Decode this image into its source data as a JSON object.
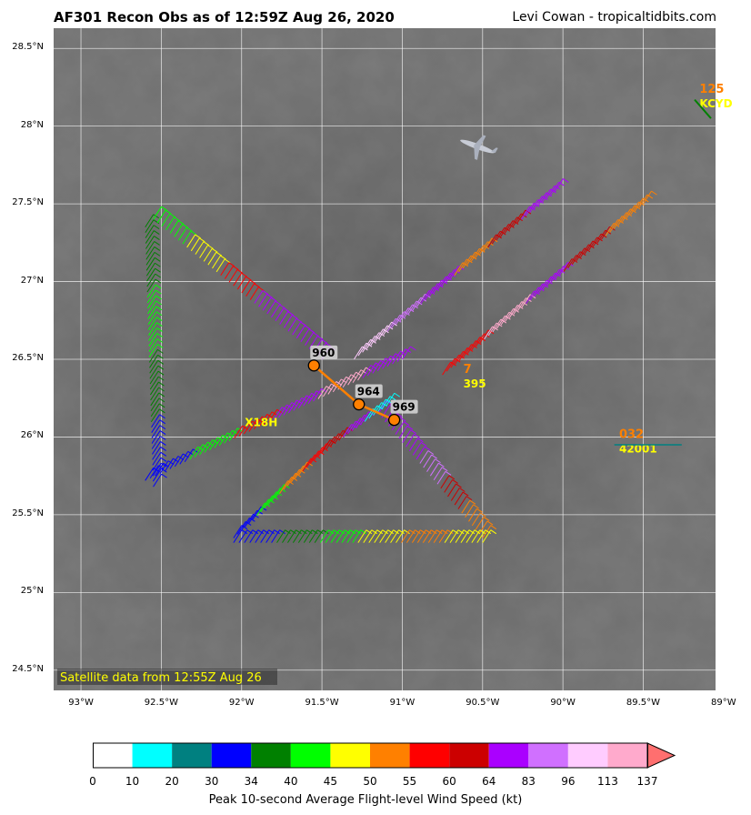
{
  "header": {
    "title": "AF301 Recon Obs as of 12:59Z Aug 26, 2020",
    "credit": "Levi Cowan - tropicaltidbits.com"
  },
  "map": {
    "lat_ticks": [
      "28.5°N",
      "28°N",
      "27.5°N",
      "27°N",
      "26.5°N",
      "26°N",
      "25.5°N",
      "25°N",
      "24.5°N"
    ],
    "lon_ticks": [
      "93°W",
      "92.5°W",
      "92°W",
      "91.5°W",
      "91°W",
      "90.5°W",
      "90°W",
      "89.5°W",
      "89°W"
    ],
    "extent": {
      "lon_min": -93.17,
      "lon_max": -89.05,
      "lat_min": 24.37,
      "lat_max": 28.63
    },
    "satellite_note": "Satellite data from 12:55Z Aug 26",
    "pressure_obs": [
      {
        "label": "960",
        "lon": -91.55,
        "lat": 26.46
      },
      {
        "label": "964",
        "lon": -91.27,
        "lat": 26.21
      },
      {
        "label": "969",
        "lon": -91.05,
        "lat": 26.11
      }
    ],
    "stations": [
      {
        "id": "KCYD",
        "value": "125",
        "lon": -89.15,
        "lat": 28.12
      },
      {
        "id": "42001",
        "value": "032",
        "lon": -89.65,
        "lat": 25.9
      },
      {
        "id": "X18H",
        "value": "",
        "lon": -91.98,
        "lat": 26.07
      },
      {
        "id": "395",
        "value": "7",
        "lon": -90.62,
        "lat": 26.32
      }
    ]
  },
  "colorbar": {
    "title": "Peak 10-second Average Flight-level Wind Speed (kt)",
    "ticks": [
      "0",
      "10",
      "20",
      "30",
      "34",
      "40",
      "45",
      "50",
      "55",
      "60",
      "64",
      "83",
      "96",
      "113",
      "137"
    ],
    "colors": [
      "#ffffff",
      "#00ffff",
      "#008080",
      "#0000ff",
      "#008000",
      "#00ff00",
      "#ffff00",
      "#ff8000",
      "#ff0000",
      "#cc0000",
      "#aa00ff",
      "#d070ff",
      "#ffccff",
      "#ffaacc",
      "#ff6f6f"
    ]
  }
}
